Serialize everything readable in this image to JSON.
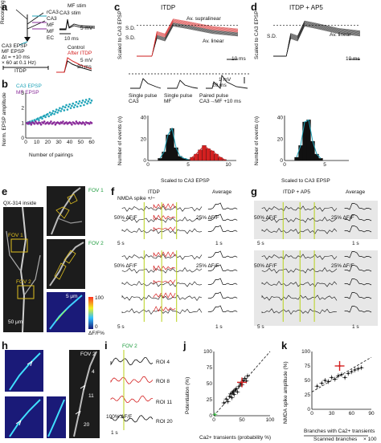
{
  "panel_labels": {
    "a": "a",
    "b": "b",
    "c": "c",
    "d": "d",
    "e": "e",
    "f": "f",
    "g": "g",
    "h": "h",
    "i": "i",
    "j": "j",
    "k": "k"
  },
  "panel_a": {
    "recording": "Recording",
    "cells": [
      "rCA3",
      "CA3",
      "MF",
      "MF",
      "EC"
    ],
    "mf_stim": "MF stim",
    "ca3_stim": "CA3 stim",
    "scale_mv": "5 mV",
    "scale_ms": "10 ms",
    "protocol_l1": "CA3 EPSP",
    "protocol_l2": "MF EPSP",
    "protocol_l3": "Δt = +10 ms",
    "protocol_l4": "× 60 at 0.1 Hz)",
    "itdp": "ITDP",
    "legend_control": "Control",
    "legend_after": "After ITDP",
    "scale_mv2": "5 mV",
    "scale_ms2": "20 ms",
    "colors": {
      "control": "#000000",
      "after": "#d42020",
      "ca3": "#1fa3b8",
      "mf": "#8a2c9a"
    }
  },
  "panel_b": {
    "legend_ca3": "CA3 EPSP",
    "legend_mf": "MF EPSP",
    "ylabel": "Norm. EPSP amplitude",
    "xlabel": "Number of pairings",
    "yticks": [
      "0",
      "1",
      "2",
      "3"
    ],
    "xticks": [
      "0",
      "10",
      "20",
      "30",
      "40",
      "50",
      "60"
    ]
  },
  "chart_data": [
    {
      "type": "scatter",
      "title": "",
      "xlabel": "Number of pairings",
      "ylabel": "Norm. EPSP amplitude",
      "xlim": [
        0,
        60
      ],
      "ylim": [
        0,
        3
      ],
      "series": [
        {
          "name": "CA3 EPSP",
          "x": [
            1,
            2,
            3,
            4,
            5,
            6,
            7,
            8,
            9,
            10,
            11,
            12,
            13,
            14,
            15,
            16,
            17,
            18,
            19,
            20,
            21,
            22,
            23,
            24,
            25,
            26,
            27,
            28,
            29,
            30,
            31,
            32,
            33,
            34,
            35,
            36,
            37,
            38,
            39,
            40,
            41,
            42,
            43,
            44,
            45,
            46,
            47,
            48,
            49,
            50,
            51,
            52,
            53,
            54,
            55,
            56,
            57,
            58,
            59,
            60
          ],
          "y": [
            1.0,
            1.05,
            0.95,
            1.1,
            1.0,
            1.15,
            1.05,
            1.2,
            1.1,
            1.25,
            1.3,
            1.2,
            1.35,
            1.4,
            1.3,
            1.45,
            1.5,
            1.4,
            1.55,
            1.6,
            1.45,
            1.7,
            1.55,
            1.65,
            1.8,
            1.6,
            1.75,
            1.9,
            1.7,
            1.85,
            2.0,
            1.8,
            1.95,
            2.1,
            1.85,
            2.05,
            2.2,
            1.9,
            2.1,
            2.25,
            2.0,
            2.15,
            2.3,
            2.05,
            2.2,
            2.4,
            2.1,
            2.3,
            2.45,
            2.15,
            2.35,
            2.5,
            2.2,
            2.4,
            2.55,
            2.3,
            2.45,
            2.6,
            2.35,
            2.5
          ]
        },
        {
          "name": "MF EPSP",
          "x": [
            1,
            2,
            3,
            4,
            5,
            6,
            7,
            8,
            9,
            10,
            11,
            12,
            13,
            14,
            15,
            16,
            17,
            18,
            19,
            20,
            21,
            22,
            23,
            24,
            25,
            26,
            27,
            28,
            29,
            30,
            31,
            32,
            33,
            34,
            35,
            36,
            37,
            38,
            39,
            40,
            41,
            42,
            43,
            44,
            45,
            46,
            47,
            48,
            49,
            50,
            51,
            52,
            53,
            54,
            55,
            56,
            57,
            58,
            59,
            60
          ],
          "y": [
            1.0,
            0.95,
            1.05,
            1.0,
            0.9,
            1.05,
            1.0,
            0.95,
            1.1,
            1.0,
            0.95,
            1.05,
            1.0,
            0.9,
            1.05,
            1.0,
            1.1,
            0.95,
            1.0,
            1.05,
            0.95,
            1.0,
            1.1,
            0.95,
            1.0,
            1.05,
            0.9,
            1.0,
            1.05,
            1.0,
            0.95,
            1.05,
            1.0,
            1.1,
            0.95,
            1.0,
            1.05,
            0.95,
            1.0,
            1.05,
            1.0,
            0.9,
            1.05,
            1.0,
            0.95,
            1.1,
            1.0,
            0.95,
            1.05,
            1.0,
            0.95,
            1.05,
            1.0,
            0.9,
            1.05,
            1.0,
            1.0,
            0.95,
            1.05,
            1.0
          ]
        }
      ]
    },
    {
      "type": "bar",
      "title": "ITDP",
      "xlabel": "Scaled to CA3 EPSP",
      "ylabel": "Number of events (n)",
      "xticks": [
        0,
        5,
        10
      ],
      "yticks": [
        0,
        20,
        40
      ],
      "xlim": [
        0,
        11
      ],
      "ylim": [
        0,
        42
      ],
      "series": [
        {
          "name": "black",
          "bins": [
            1.5,
            2.0,
            2.5,
            3.0,
            3.5,
            4.0,
            4.5,
            5.0
          ],
          "values": [
            2,
            8,
            24,
            30,
            12,
            4,
            2,
            1
          ]
        },
        {
          "name": "red",
          "bins": [
            5.5,
            6.0,
            6.5,
            7.0,
            7.5,
            8.0,
            8.5,
            9.0,
            9.5
          ],
          "values": [
            3,
            6,
            10,
            14,
            11,
            9,
            6,
            3,
            1
          ]
        }
      ]
    },
    {
      "type": "bar",
      "title": "ITDP + AP5",
      "xlabel": "Scaled to CA3 EPSP",
      "ylabel": "Number of events (n)",
      "xticks": [
        0,
        5
      ],
      "yticks": [
        0,
        20,
        40
      ],
      "xlim": [
        0,
        8
      ],
      "ylim": [
        0,
        42
      ],
      "series": [
        {
          "name": "black",
          "bins": [
            1.5,
            2.0,
            2.5,
            3.0,
            3.5,
            4.0,
            4.5
          ],
          "values": [
            3,
            14,
            36,
            38,
            18,
            6,
            2
          ]
        }
      ]
    },
    {
      "type": "scatter",
      "title": "",
      "xlabel": "Ca2+ transients (probability %)",
      "ylabel": "Potentiation (%)",
      "xlim": [
        0,
        100
      ],
      "ylim": [
        0,
        100
      ],
      "xticks": [
        0,
        50,
        100
      ],
      "yticks": [
        0,
        25,
        50,
        75,
        100
      ],
      "series": [
        {
          "name": "black",
          "x": [
            18,
            22,
            25,
            28,
            30,
            32,
            33,
            35,
            36,
            38,
            40,
            42,
            45,
            48,
            50,
            52,
            55,
            58,
            60
          ],
          "y": [
            20,
            26,
            22,
            30,
            34,
            28,
            36,
            38,
            33,
            40,
            42,
            37,
            46,
            50,
            48,
            55,
            58,
            54,
            62
          ]
        },
        {
          "name": "red",
          "x": [
            50
          ],
          "y": [
            52
          ]
        },
        {
          "name": "green",
          "x": [
            2
          ],
          "y": [
            2
          ]
        }
      ]
    },
    {
      "type": "scatter",
      "title": "",
      "xlabel": "Branches with Ca2+ transients / Scanned branches",
      "ylabel": "NMDA spike amplitude (%)",
      "xlim": [
        0,
        90
      ],
      "ylim": [
        0,
        100
      ],
      "xticks": [
        0,
        30,
        60,
        90
      ],
      "yticks": [
        0,
        25,
        50,
        75,
        100
      ],
      "series": [
        {
          "name": "black",
          "x": [
            8,
            15,
            20,
            25,
            30,
            35,
            40,
            45,
            50,
            55,
            60,
            65,
            70,
            75
          ],
          "y": [
            40,
            45,
            50,
            48,
            55,
            52,
            58,
            60,
            55,
            62,
            65,
            68,
            70,
            72
          ]
        },
        {
          "name": "red",
          "x": [
            42
          ],
          "y": [
            75
          ]
        }
      ]
    }
  ],
  "panel_c": {
    "title": "ITDP",
    "ylabel": "Scaled to CA3 EPSP",
    "sd_top": "S.D.",
    "sd_bottom": "S.D.",
    "av_supra": "Av. supralinear",
    "av_linear": "Av. linear",
    "scale_ms": "10 ms",
    "inset_mv": "1 mV",
    "inset_ms": "20 ms",
    "inset_single_ca3": "Single pulse CA3",
    "inset_single_mf": "Single pulse MF",
    "inset_paired": "Paired pulse CA3→MF +10 ms",
    "ylabel2": "Number of events (n)",
    "xlabel": "Scaled to CA3 EPSP",
    "yticks": [
      "0",
      "20",
      "40"
    ],
    "xticks": [
      "0",
      "5",
      "10"
    ]
  },
  "panel_d": {
    "title": "ITDP + AP5",
    "ylabel": "Scaled to CA3 EPSP",
    "sd": "S.D.",
    "av_linear": "Av. linear",
    "scale_ms": "10 ms",
    "ylabel2": "Number of events (n)",
    "xlabel": "Scaled to CA3 EPSP",
    "yticks": [
      "0",
      "20",
      "40"
    ],
    "xticks": [
      "0",
      "5"
    ]
  },
  "panel_e": {
    "inside": "QX-314 inside",
    "fov1": "FOV 1",
    "fov2": "FOV 2",
    "fov1_box": "FOV 1",
    "fov2_box": "FOV 2",
    "roi_labels": [
      "1",
      "2",
      "3",
      "4",
      "5",
      "6"
    ],
    "scale_um": "50 μm",
    "scale_um2": "5 μm",
    "colorbar_top": "100",
    "colorbar_bottom": "0",
    "colorbar_unit": "ΔF/F%"
  },
  "panel_f": {
    "title": "ITDP",
    "average": "Average",
    "nmda": "NMDA spike +/−",
    "scale1": "50% ΔF/F",
    "scale2": "25% ΔF/F",
    "scale3": "50% ΔF/F",
    "scale4": "25% ΔF/F",
    "time1": "5 s",
    "time2": "1 s",
    "time3": "5 s",
    "time4": "1 s",
    "rows_top": [
      "1",
      "2",
      "3"
    ],
    "rows_bottom": [
      "1",
      "2",
      "3",
      "4",
      "5"
    ]
  },
  "panel_g": {
    "title": "ITDP + AP5",
    "average": "Average",
    "scale1": "50% ΔF/F",
    "scale2": "25% ΔF/F",
    "scale3": "50% ΔF/F",
    "scale4": "25% ΔF/F",
    "time1": "5 s",
    "time2": "1 s",
    "time3": "5 s",
    "time4": "1 s",
    "rows_top": [
      "1",
      "2",
      "3"
    ],
    "rows_bottom": [
      "1",
      "2",
      "3",
      "4",
      "5"
    ]
  },
  "panel_h": {
    "fov": "FOV 2",
    "rois": [
      "4",
      "11",
      "20"
    ]
  },
  "panel_i": {
    "fov": "FOV 2",
    "rows": [
      "ROI 4",
      "ROI 8",
      "ROI 11",
      "ROI 20"
    ],
    "scale": "100% ΔF/F",
    "time": "1 s"
  },
  "panel_j": {
    "ylabel": "Potentiation (%)",
    "xlabel": "Ca2+ transients (probability %)",
    "yticks": [
      "0",
      "25",
      "50",
      "75",
      "100"
    ],
    "xticks": [
      "0",
      "50",
      "100"
    ]
  },
  "panel_k": {
    "ylabel": "NMDA spike amplitude (%)",
    "xlabel_top": "Branches with Ca2+ transients",
    "xlabel_bottom": "Scanned branches",
    "x_suffix": "× 100",
    "yticks": [
      "0",
      "25",
      "50",
      "75",
      "100"
    ],
    "xticks": [
      "0",
      "30",
      "60",
      "90"
    ]
  }
}
